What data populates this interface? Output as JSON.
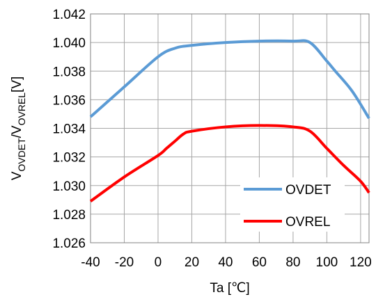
{
  "chart_data": {
    "type": "line",
    "xlabel": "Ta [℃]",
    "ylabel_parts": [
      "V",
      "OVDET",
      "/V",
      "OVREL",
      "[V]"
    ],
    "xlim": [
      -40,
      125
    ],
    "ylim": [
      1.026,
      1.042
    ],
    "x_ticks": [
      -40,
      -20,
      0,
      20,
      40,
      60,
      80,
      100,
      120
    ],
    "x_tick_labels": [
      "-40",
      "-20",
      "0",
      "20",
      "40",
      "60",
      "80",
      "100",
      "120"
    ],
    "y_ticks": [
      1.026,
      1.028,
      1.03,
      1.032,
      1.034,
      1.036,
      1.038,
      1.04,
      1.042
    ],
    "y_tick_labels": [
      "1.026",
      "1.028",
      "1.030",
      "1.032",
      "1.034",
      "1.036",
      "1.038",
      "1.040",
      "1.042"
    ],
    "x_grid": [
      -40,
      -20,
      0,
      20,
      40,
      60,
      80,
      100,
      120,
      125
    ],
    "grid": true,
    "legend_position": "bottom-right",
    "series": [
      {
        "name": "OVDET",
        "color": "#5b9bd5",
        "x": [
          -40,
          -20,
          0,
          10,
          20,
          40,
          60,
          80,
          90,
          100,
          105,
          115,
          125
        ],
        "y": [
          1.0348,
          1.0369,
          1.039,
          1.0396,
          1.0398,
          1.04,
          1.0401,
          1.0401,
          1.04,
          1.0387,
          1.038,
          1.0366,
          1.0347
        ]
      },
      {
        "name": "OVREL",
        "color": "#ff0000",
        "x": [
          -40,
          -20,
          0,
          5,
          10,
          15,
          20,
          40,
          60,
          80,
          90,
          100,
          110,
          120,
          125
        ],
        "y": [
          1.0289,
          1.0306,
          1.0321,
          1.0326,
          1.0331,
          1.0336,
          1.0338,
          1.0341,
          1.0342,
          1.0341,
          1.0338,
          1.0326,
          1.0314,
          1.0303,
          1.0295
        ]
      }
    ]
  }
}
